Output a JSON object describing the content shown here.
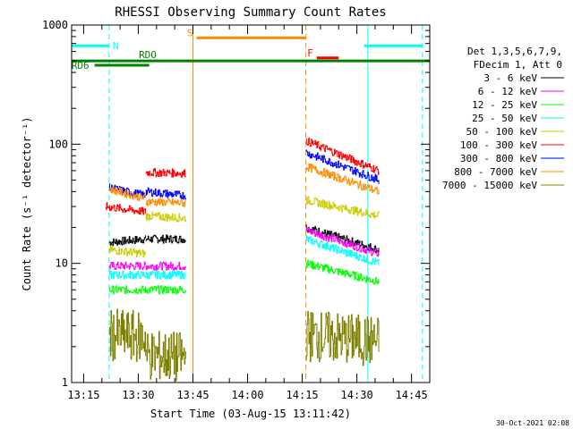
{
  "chart_data": {
    "type": "line",
    "title": "RHESSI Observing Summary Count Rates",
    "xlabel": "Start Time (03-Aug-15 13:11:42)",
    "ylabel": "Count Rate (s⁻¹ detector⁻¹)",
    "yscale": "log",
    "ylim": [
      1,
      1000
    ],
    "xlim": [
      "13:11:42",
      "14:50:00"
    ],
    "x_ticks": [
      "13:15",
      "13:30",
      "13:45",
      "14:00",
      "14:15",
      "14:30",
      "14:45"
    ],
    "y_ticks": [
      "1",
      "10",
      "100",
      "1000"
    ],
    "legend_header": [
      "Det 1,3,5,6,7,9,",
      "FDecim 1, Att 0"
    ],
    "legend_placement": "right",
    "timestamp": "30-Oct-2021 02:08",
    "series": [
      {
        "name": "3 - 6 keV",
        "color": "#000000",
        "segments": [
          {
            "x": [
              "13:22",
              "13:32"
            ],
            "y": [
              15,
              16
            ]
          },
          {
            "x": [
              "13:32",
              "13:43"
            ],
            "y": [
              16,
              16
            ]
          },
          {
            "x": [
              "14:16",
              "14:36"
            ],
            "y": [
              20,
              13
            ]
          }
        ]
      },
      {
        "name": "6 - 12 keV",
        "color": "#ff00ff",
        "segments": [
          {
            "x": [
              "13:22",
              "13:32"
            ],
            "y": [
              9.5,
              9.5
            ]
          },
          {
            "x": [
              "13:32",
              "13:43"
            ],
            "y": [
              9.5,
              9.5
            ]
          },
          {
            "x": [
              "14:16",
              "14:36"
            ],
            "y": [
              19,
              12
            ]
          }
        ]
      },
      {
        "name": "12 - 25 keV",
        "color": "#00ff00",
        "segments": [
          {
            "x": [
              "13:22",
              "13:32"
            ],
            "y": [
              6,
              6
            ]
          },
          {
            "x": [
              "13:32",
              "13:43"
            ],
            "y": [
              6,
              6
            ]
          },
          {
            "x": [
              "14:16",
              "14:36"
            ],
            "y": [
              10,
              7
            ]
          }
        ]
      },
      {
        "name": "25 - 50 keV",
        "color": "#00ffff",
        "segments": [
          {
            "x": [
              "13:22",
              "13:32"
            ],
            "y": [
              8,
              8
            ]
          },
          {
            "x": [
              "13:32",
              "13:43"
            ],
            "y": [
              8,
              8
            ]
          },
          {
            "x": [
              "14:16",
              "14:36"
            ],
            "y": [
              16,
              10
            ]
          }
        ]
      },
      {
        "name": "50 - 100 keV",
        "color": "#cccc00",
        "segments": [
          {
            "x": [
              "13:22",
              "13:32"
            ],
            "y": [
              13,
              12
            ]
          },
          {
            "x": [
              "13:32",
              "13:43"
            ],
            "y": [
              25,
              24
            ]
          },
          {
            "x": [
              "14:16",
              "14:36"
            ],
            "y": [
              34,
              25
            ]
          }
        ]
      },
      {
        "name": "100 - 300 keV",
        "color": "#ff0000",
        "segments": [
          {
            "x": [
              "13:21",
              "13:32"
            ],
            "y": [
              30,
              27
            ]
          },
          {
            "x": [
              "13:32",
              "13:43"
            ],
            "y": [
              58,
              57
            ]
          },
          {
            "x": [
              "14:16",
              "14:36"
            ],
            "y": [
              107,
              60
            ]
          }
        ]
      },
      {
        "name": "300 - 800 keV",
        "color": "#0000ff",
        "segments": [
          {
            "x": [
              "13:22",
              "13:32"
            ],
            "y": [
              43,
              37
            ]
          },
          {
            "x": [
              "13:32",
              "13:43"
            ],
            "y": [
              40,
              37
            ]
          },
          {
            "x": [
              "14:16",
              "14:36"
            ],
            "y": [
              85,
              50
            ]
          }
        ]
      },
      {
        "name": "800 - 7000 keV",
        "color": "#ff8c00",
        "segments": [
          {
            "x": [
              "13:22",
              "13:32"
            ],
            "y": [
              42,
              35
            ]
          },
          {
            "x": [
              "13:32",
              "13:43"
            ],
            "y": [
              33,
              32
            ]
          },
          {
            "x": [
              "14:16",
              "14:36"
            ],
            "y": [
              65,
              40
            ]
          }
        ]
      },
      {
        "name": "7000 - 15000 keV",
        "color": "#808000",
        "segments": [
          {
            "x": [
              "13:22",
              "13:32"
            ],
            "y": [
              2.5,
              2.4
            ]
          },
          {
            "x": [
              "13:32",
              "13:43"
            ],
            "y": [
              1.7,
              1.6
            ]
          },
          {
            "x": [
              "14:16",
              "14:36"
            ],
            "y": [
              2.5,
              2.2
            ]
          }
        ]
      }
    ],
    "annotations": [
      {
        "label": "N",
        "color": "#00ffff",
        "level": 670,
        "x": [
          "13:11:42",
          "13:22"
        ],
        "label_side": "right"
      },
      {
        "label": "",
        "color": "#00ffff",
        "level": 670,
        "x": [
          "14:32",
          "14:48"
        ],
        "label_side": "none"
      },
      {
        "label": "S",
        "color": "#ff8c00",
        "level": 780,
        "x": [
          "13:46",
          "14:16"
        ],
        "label_side": "left"
      },
      {
        "label": "F",
        "color": "#ff0000",
        "level": 530,
        "x": [
          "14:19",
          "14:25"
        ],
        "label_side": "left"
      },
      {
        "label": "RDO",
        "color": "#008000",
        "level": 500,
        "x": [
          "13:11:42",
          "14:50"
        ],
        "label_side": "above"
      },
      {
        "label": "RD6",
        "color": "#008000",
        "level": 460,
        "x": [
          "13:18",
          "13:33"
        ],
        "label_side": "left"
      }
    ],
    "vertical_lines": [
      {
        "x": "13:11:42",
        "color": "#00ffff",
        "style": "solid"
      },
      {
        "x": "13:22",
        "color": "#00ffff",
        "style": "dashed"
      },
      {
        "x": "13:45",
        "color": "#ff8c00",
        "style": "solid"
      },
      {
        "x": "14:16",
        "color": "#ff8c00",
        "style": "dashed"
      },
      {
        "x": "14:33",
        "color": "#00ffff",
        "style": "solid"
      },
      {
        "x": "14:48",
        "color": "#00ffff",
        "style": "dashed"
      }
    ]
  }
}
